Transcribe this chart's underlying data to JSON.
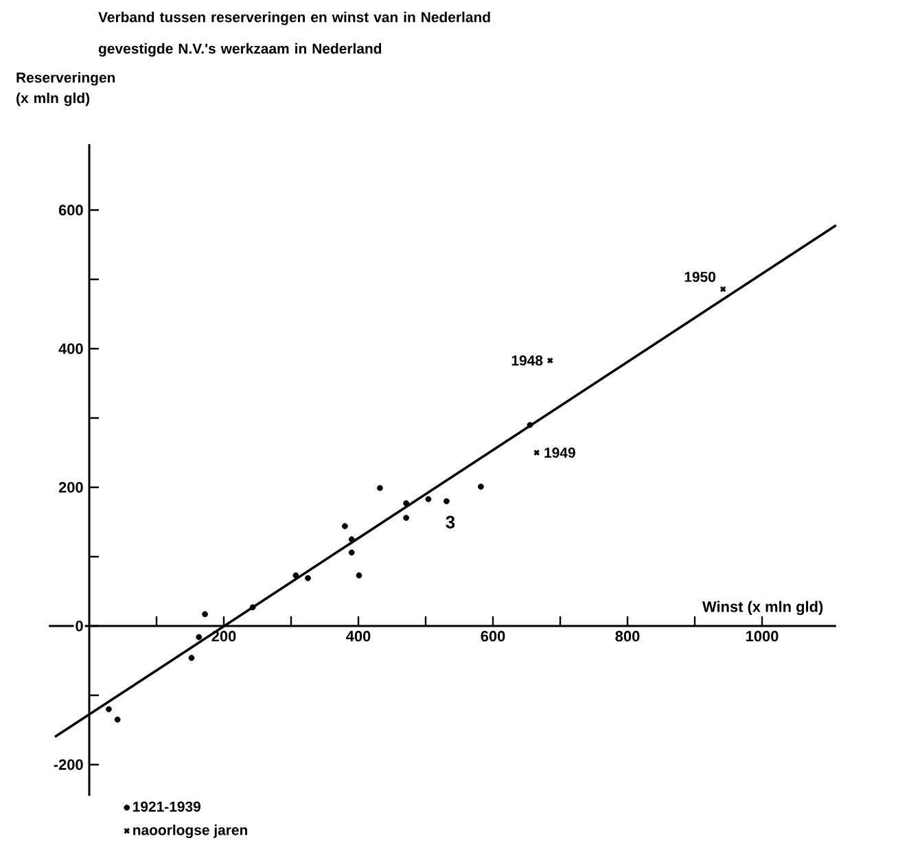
{
  "chart_data": {
    "type": "scatter",
    "title": "Verband tussen reserveringen en winst van in Nederland gevestigde N.V.'s werkzaam in Nederland",
    "xlabel": "Winst (x mln gld)",
    "ylabel": "Reserveringen (x mln gld)",
    "xlim": [
      -60,
      1110
    ],
    "ylim": [
      -245,
      695
    ],
    "xticks": [
      {
        "value": 100,
        "label": null
      },
      200,
      {
        "value": 300,
        "label": null
      },
      400,
      {
        "value": 500,
        "label": null
      },
      600,
      {
        "value": 700,
        "label": null
      },
      800,
      {
        "value": 900,
        "label": null
      },
      1000
    ],
    "yticks": [
      -200,
      {
        "value": -100,
        "label": null
      },
      0,
      {
        "value": 100,
        "label": null
      },
      200,
      {
        "value": 300,
        "label": null
      },
      400,
      {
        "value": 500,
        "label": null
      },
      600
    ],
    "legend": "bottom left",
    "annotations": [
      "3",
      {
        "text": "1948",
        "x": 685,
        "y": 383
      },
      {
        "text": "1949",
        "x": 665,
        "y": 250
      },
      {
        "text": "1950",
        "x": 942,
        "y": 486
      }
    ],
    "series": [
      {
        "name": "1921-1939",
        "color": "#000000",
        "marker": "circle",
        "x": [
          29,
          42,
          152,
          163,
          172,
          243,
          307,
          325,
          380,
          390,
          390,
          401,
          432,
          471,
          471,
          504,
          531,
          582,
          655
        ],
        "values": [
          -120,
          -135,
          -46,
          -16,
          17,
          27,
          73,
          69,
          144,
          125,
          106,
          73,
          199,
          177,
          156,
          183,
          180,
          201,
          290
        ]
      },
      {
        "name": "naoorlogse jaren",
        "color": "#000000",
        "marker": "cross",
        "x": [
          685,
          665,
          942
        ],
        "values": [
          383,
          250,
          486
        ]
      },
      {
        "type": "line",
        "color": "#000000",
        "marker": "none",
        "line_style": "solid",
        "x": [
          -51,
          1110
        ],
        "values": [
          -160,
          578
        ]
      }
    ]
  }
}
